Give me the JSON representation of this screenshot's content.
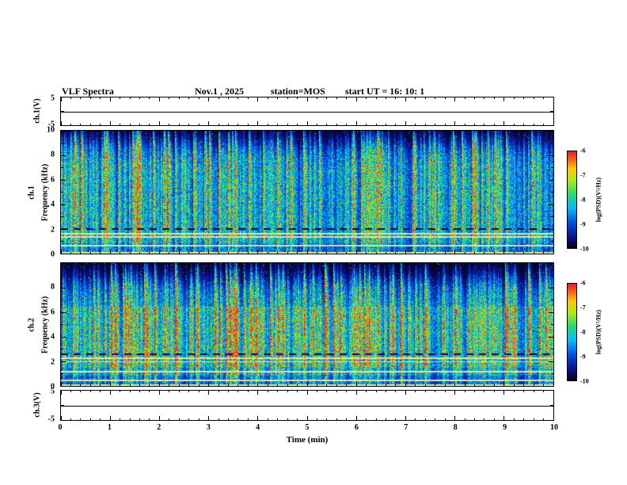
{
  "header": {
    "title": "VLF Spectra",
    "date": "Nov.1 , 2025",
    "station": "station=MOS",
    "start_ut": "start UT  =   16: 10: 1"
  },
  "panels": {
    "ch1v": {
      "label": "ch.1(V)",
      "yticks": [
        "5",
        "-5"
      ]
    },
    "ch1": {
      "channel": "ch.1",
      "ylabel": "Frequency  (kHz)",
      "yticks": [
        "10",
        "8",
        "6",
        "4",
        "2",
        "0"
      ]
    },
    "ch2": {
      "channel": "ch.2",
      "ylabel": "Frequency  (kHz)",
      "yticks": [
        "8",
        "6",
        "4",
        "2",
        "0"
      ]
    },
    "ch3v": {
      "label": "ch.3(V)",
      "yticks": [
        "5",
        "-5"
      ]
    }
  },
  "xaxis": {
    "label": "Time (min)",
    "ticks": [
      "0",
      "1",
      "2",
      "3",
      "4",
      "5",
      "6",
      "7",
      "8",
      "9",
      "10"
    ]
  },
  "colorbars": [
    {
      "label": "log(PSD)(V²/Hz)",
      "ticks": [
        "-6",
        "-7",
        "-8",
        "-9",
        "-10"
      ]
    },
    {
      "label": "log(PSD)(V²/Hz)",
      "ticks": [
        "-6",
        "-7",
        "-8",
        "-9",
        "-10"
      ]
    }
  ],
  "chart_data": {
    "type": "heatmap",
    "title": "VLF Spectra",
    "date": "Nov.1 , 2025",
    "station": "MOS",
    "start_ut": "16:10:1",
    "x": {
      "label": "Time (min)",
      "range": [
        0,
        10
      ],
      "ticks": [
        0,
        1,
        2,
        3,
        4,
        5,
        6,
        7,
        8,
        9,
        10
      ]
    },
    "panels": [
      {
        "id": "ch1_voltage",
        "type": "line",
        "ylabel": "ch.1(V)",
        "ylim": [
          -5,
          5
        ],
        "series": [
          {
            "name": "ch.1 waveform",
            "description": "flat line at 0 V for the full 10 min record"
          }
        ]
      },
      {
        "id": "ch1_spectrogram",
        "type": "heatmap",
        "ylabel": "Frequency (kHz)",
        "ylim": [
          0,
          10
        ],
        "yticks": [
          0,
          2,
          4,
          6,
          8,
          10
        ],
        "zlabel": "log(PSD)(V²/Hz)",
        "zlim": [
          -10,
          -6
        ],
        "description": "dense broadband vertical impulsive striations (sferics) from 0 to ~9 kHz, dark above ~9 kHz, persistent narrowband bright lines near 1.6, 1.4 and 0.7 kHz, dark dashed band near 2 kHz, bright line along 0 kHz edge"
      },
      {
        "id": "ch2_spectrogram",
        "type": "heatmap",
        "ylabel": "Frequency (kHz)",
        "ylim": [
          0,
          10
        ],
        "yticks": [
          0,
          2,
          4,
          6,
          8
        ],
        "zlabel": "log(PSD)(V²/Hz)",
        "zlim": [
          -10,
          -6
        ],
        "description": "similar dense striations, stronger/warmer (green-yellow) between 2 and 6 kHz, bright narrowband lines near 2.3, 2.0, 1.2 and 0.5 kHz, dark dashed band near 2.6 kHz"
      },
      {
        "id": "ch3_voltage",
        "type": "line",
        "ylabel": "ch.3(V)",
        "ylim": [
          -5,
          5
        ],
        "series": [
          {
            "name": "ch.3 waveform",
            "description": "flat line at 0 V for the full 10 min record"
          }
        ]
      }
    ],
    "colorbar": {
      "label": "log(PSD)(V²/Hz)",
      "range": [
        -10,
        -6
      ],
      "ticks": [
        -6,
        -7,
        -8,
        -9,
        -10
      ]
    },
    "render": {
      "ch1": {
        "seed": 12345,
        "cutoff": 8.6,
        "warm": false,
        "bright_lines": [
          [
            1.65,
            0.06
          ],
          [
            1.4,
            0.05
          ],
          [
            0.7,
            0.055
          ],
          [
            0.12,
            0.07
          ]
        ],
        "dark_dashes": [
          2.05
        ]
      },
      "ch2": {
        "seed": 77777,
        "cutoff": 8.3,
        "warm": true,
        "bright_lines": [
          [
            2.3,
            0.055
          ],
          [
            2.0,
            0.05
          ],
          [
            1.2,
            0.055
          ],
          [
            0.5,
            0.05
          ],
          [
            0.12,
            0.07
          ]
        ],
        "dark_dashes": [
          2.6
        ]
      }
    }
  }
}
